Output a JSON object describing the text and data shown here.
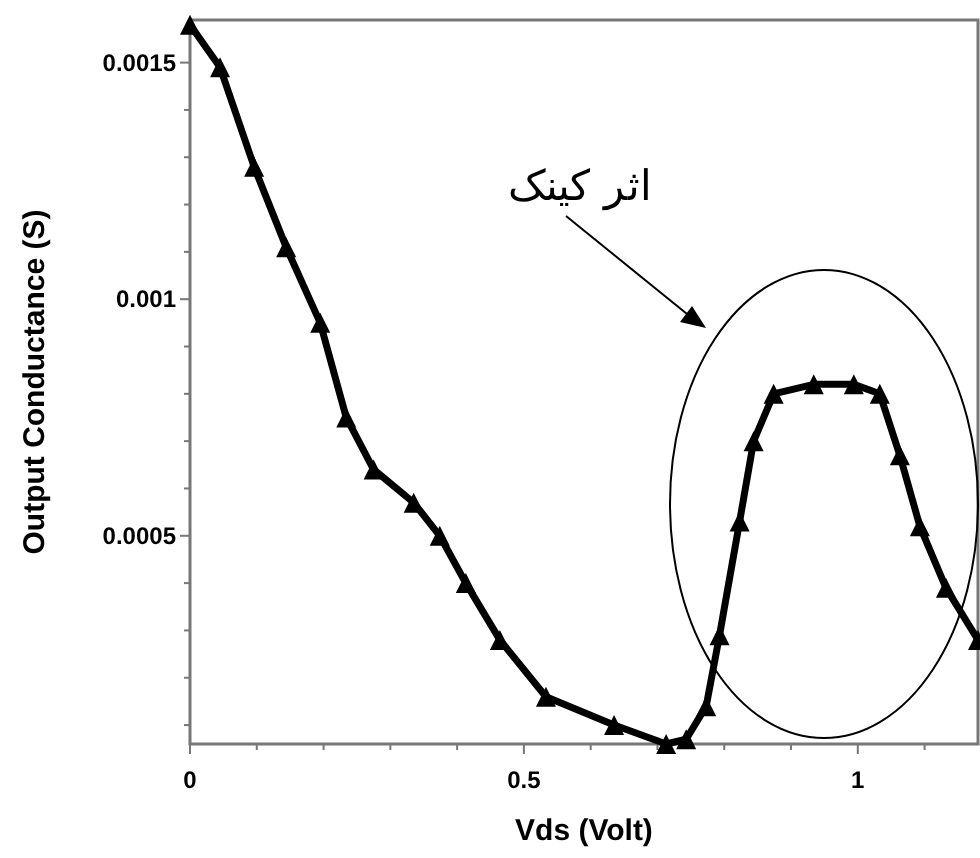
{
  "chart_data": {
    "type": "line",
    "xlabel": "Vds (Volt)",
    "ylabel": "Output Conductance (S)",
    "annotations": [
      "اثر کینک"
    ],
    "x": [
      0,
      0.045,
      0.096,
      0.144,
      0.195,
      0.234,
      0.275,
      0.335,
      0.374,
      0.413,
      0.464,
      0.533,
      0.635,
      0.713,
      0.743,
      0.773,
      0.793,
      0.823,
      0.844,
      0.874,
      0.934,
      0.994,
      1.033,
      1.063,
      1.093,
      1.132,
      1.18
    ],
    "series": [
      {
        "color": "#000000",
        "values": [
          0.00158,
          0.00149,
          0.00128,
          0.00111,
          0.00095,
          0.00075,
          0.00064,
          0.00057,
          0.0005,
          0.0004,
          0.00028,
          0.00016,
          0.0001,
          6e-05,
          7e-05,
          0.00014,
          0.00029,
          0.00053,
          0.0007,
          0.0008,
          0.00082,
          0.00082,
          0.0008,
          0.00067,
          0.00052,
          0.00039,
          0.00028
        ]
      }
    ],
    "xlim": [
      0,
      1.18
    ],
    "ylim": [
      6e-05,
      0.00159
    ],
    "xticks": [
      0,
      {
        "value": 0.1,
        "label": null
      },
      {
        "value": 0.2,
        "label": null
      },
      {
        "value": 0.3,
        "label": null
      },
      {
        "value": 0.4,
        "label": null
      },
      0.5,
      {
        "value": 0.6,
        "label": null
      },
      {
        "value": 0.7,
        "label": null
      },
      {
        "value": 0.8,
        "label": null
      },
      {
        "value": 0.9,
        "label": null
      },
      1,
      {
        "value": 1.1,
        "label": null
      }
    ],
    "yticks": [
      {
        "value": 0.0001,
        "label": null
      },
      {
        "value": 0.0002,
        "label": null
      },
      {
        "value": 0.0003,
        "label": null
      },
      {
        "value": 0.0004,
        "label": null
      },
      0.0005,
      {
        "value": 0.0006,
        "label": null
      },
      {
        "value": 0.0007,
        "label": null
      },
      {
        "value": 0.0008,
        "label": null
      },
      {
        "value": 0.0009,
        "label": null
      },
      0.001,
      {
        "value": 0.0011,
        "label": null
      },
      {
        "value": 0.0012,
        "label": null
      },
      {
        "value": 0.0013,
        "label": null
      },
      {
        "value": 0.0014,
        "label": null
      },
      0.0015
    ],
    "marker": "triangle",
    "line_style": "solid"
  }
}
